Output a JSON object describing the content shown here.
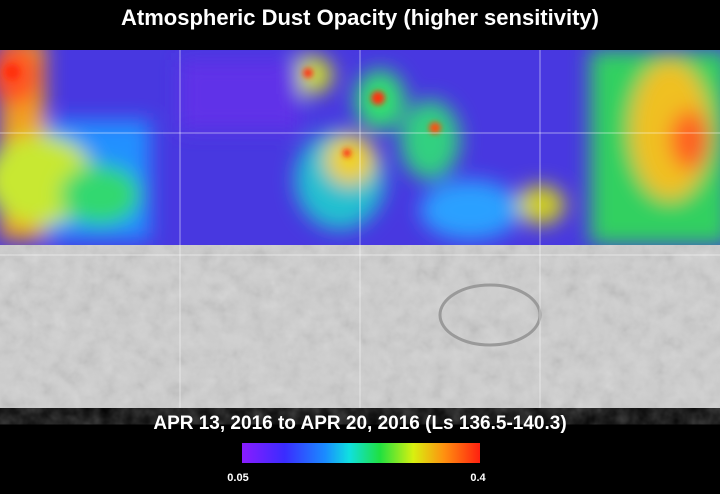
{
  "title": "Atmospheric Dust Opacity (higher sensitivity)",
  "subtitle": "APR 13, 2016 to APR 20, 2016 (Ls 136.5-140.3)",
  "colorbar": {
    "min": 0.05,
    "max": 0.4
  }
}
